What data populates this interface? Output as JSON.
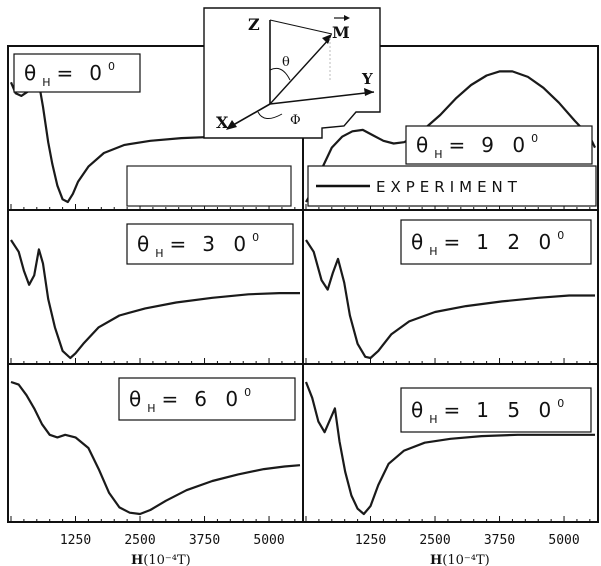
{
  "chart_data": {
    "type": "line",
    "layout": "3 rows x 2 columns",
    "xlabel": "H(10⁻⁴T)",
    "xlabel_base": "H",
    "xlabel_unit": "(10⁻⁴T)",
    "xticks": [
      1250,
      2500,
      3750,
      5000
    ],
    "xlim": [
      0,
      5600
    ],
    "legend": {
      "label": "EXPERIMENT",
      "placement": "upper-right panel, inside box"
    },
    "inset": {
      "axis_labels": [
        "Z",
        "X",
        "Y"
      ],
      "symbols": [
        "M",
        "θ",
        "Φ"
      ],
      "description": "coordinate system with magnetization vector"
    },
    "panels": [
      {
        "label": "θ_H = 0°",
        "sym": "θ",
        "sub": "H",
        "eq": "=",
        "val": "0",
        "deg": "0",
        "x": [
          0,
          90,
          200,
          320,
          420,
          520,
          620,
          720,
          800,
          900,
          1000,
          1100,
          1200,
          1300,
          1500,
          1800,
          2200,
          2700,
          3300,
          4000,
          4600,
          5200,
          5600
        ],
        "y": [
          0.88,
          0.8,
          0.78,
          0.81,
          0.94,
          0.92,
          0.7,
          0.44,
          0.28,
          0.12,
          0.02,
          0.0,
          0.06,
          0.15,
          0.26,
          0.36,
          0.42,
          0.45,
          0.47,
          0.48,
          0.49,
          0.49,
          0.49
        ]
      },
      {
        "label": "θ_H = 90°",
        "sym": "θ",
        "sub": "H",
        "eq": "=",
        "val": "9 0",
        "deg": "0",
        "x": [
          0,
          150,
          300,
          500,
          700,
          900,
          1100,
          1300,
          1500,
          1700,
          1900,
          2100,
          2300,
          2600,
          2900,
          3200,
          3500,
          3750,
          4000,
          4300,
          4600,
          4900,
          5200,
          5500,
          5600
        ],
        "y": [
          0.0,
          0.1,
          0.24,
          0.4,
          0.48,
          0.52,
          0.53,
          0.49,
          0.45,
          0.43,
          0.44,
          0.48,
          0.54,
          0.64,
          0.76,
          0.86,
          0.93,
          0.96,
          0.96,
          0.92,
          0.84,
          0.73,
          0.6,
          0.48,
          0.4
        ]
      },
      {
        "label": "θ_H = 30°",
        "sym": "θ",
        "sub": "H",
        "eq": "=",
        "val": "3 0",
        "deg": "0",
        "x": [
          0,
          150,
          250,
          350,
          450,
          540,
          620,
          720,
          850,
          1000,
          1150,
          1250,
          1400,
          1700,
          2100,
          2600,
          3200,
          3900,
          4600,
          5200,
          5600
        ],
        "y": [
          1.0,
          0.9,
          0.74,
          0.62,
          0.7,
          0.92,
          0.8,
          0.5,
          0.26,
          0.06,
          0.0,
          0.04,
          0.12,
          0.26,
          0.36,
          0.42,
          0.47,
          0.51,
          0.54,
          0.55,
          0.55
        ]
      },
      {
        "label": "θ_H = 120°",
        "sym": "θ",
        "sub": "H",
        "eq": "=",
        "val": "1 2 0",
        "deg": "0",
        "x": [
          0,
          150,
          300,
          420,
          520,
          620,
          740,
          850,
          1000,
          1150,
          1250,
          1400,
          1650,
          2000,
          2500,
          3100,
          3800,
          4500,
          5100,
          5600
        ],
        "y": [
          1.0,
          0.9,
          0.66,
          0.58,
          0.72,
          0.84,
          0.64,
          0.36,
          0.12,
          0.01,
          0.0,
          0.06,
          0.2,
          0.31,
          0.39,
          0.44,
          0.48,
          0.51,
          0.53,
          0.53
        ]
      },
      {
        "label": "θ_H = 60°",
        "sym": "θ",
        "sub": "H",
        "eq": "=",
        "val": "6 0",
        "deg": "0",
        "x": [
          0,
          150,
          300,
          450,
          600,
          750,
          900,
          1050,
          1250,
          1500,
          1700,
          1900,
          2100,
          2300,
          2500,
          2700,
          3000,
          3400,
          3900,
          4400,
          4900,
          5300,
          5600
        ],
        "y": [
          1.0,
          0.98,
          0.9,
          0.8,
          0.68,
          0.6,
          0.58,
          0.6,
          0.58,
          0.5,
          0.34,
          0.16,
          0.05,
          0.01,
          0.0,
          0.03,
          0.1,
          0.18,
          0.25,
          0.3,
          0.34,
          0.36,
          0.37
        ]
      },
      {
        "label": "θ_H = 150°",
        "sym": "θ",
        "sub": "H",
        "eq": "=",
        "val": "1 5 0",
        "deg": "0",
        "x": [
          0,
          120,
          240,
          360,
          470,
          560,
          650,
          760,
          880,
          1000,
          1120,
          1250,
          1400,
          1600,
          1900,
          2300,
          2800,
          3400,
          4100,
          4800,
          5600
        ],
        "y": [
          1.0,
          0.88,
          0.7,
          0.62,
          0.72,
          0.8,
          0.55,
          0.32,
          0.14,
          0.04,
          0.0,
          0.06,
          0.22,
          0.38,
          0.48,
          0.54,
          0.57,
          0.59,
          0.6,
          0.6,
          0.6
        ]
      }
    ]
  }
}
